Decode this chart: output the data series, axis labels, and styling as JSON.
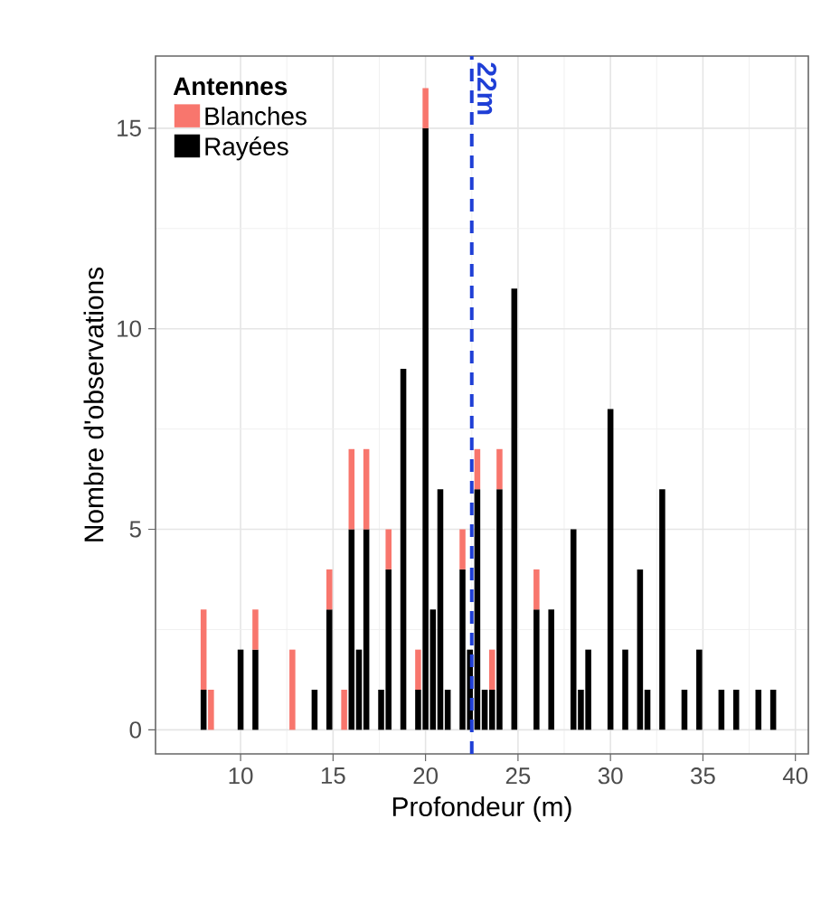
{
  "chart_data": {
    "type": "bar",
    "stacked": true,
    "xlabel": "Profondeur (m)",
    "ylabel": "Nombre d'observations",
    "legend_title": "Antennes",
    "legend": "top left",
    "grid": true,
    "x": [
      8.0,
      8.4,
      10.0,
      10.8,
      12.8,
      14.0,
      14.8,
      15.6,
      16.0,
      16.4,
      16.8,
      17.6,
      18.0,
      18.8,
      19.6,
      20.0,
      20.4,
      20.8,
      21.2,
      22.0,
      22.4,
      22.8,
      23.2,
      23.6,
      24.0,
      24.8,
      26.0,
      26.8,
      28.0,
      28.4,
      28.8,
      30.0,
      30.8,
      31.6,
      32.0,
      32.8,
      34.0,
      34.8,
      36.0,
      36.8,
      38.0,
      38.8
    ],
    "series": [
      {
        "name": "Rayées",
        "color": "#000000",
        "values": [
          1,
          null,
          2,
          2,
          null,
          1,
          3,
          null,
          5,
          2,
          5,
          1,
          4,
          9,
          1,
          15,
          3,
          6,
          1,
          4,
          2,
          6,
          1,
          1,
          6,
          11,
          3,
          3,
          5,
          1,
          2,
          8,
          2,
          4,
          1,
          6,
          1,
          2,
          1,
          1,
          1,
          1
        ]
      },
      {
        "name": "Blanches",
        "color": "#f8766d",
        "values": [
          2,
          1,
          null,
          1,
          2,
          null,
          1,
          1,
          2,
          null,
          2,
          null,
          1,
          null,
          1,
          1,
          null,
          null,
          null,
          1,
          null,
          1,
          null,
          1,
          1,
          null,
          1,
          null,
          null,
          null,
          null,
          null,
          null,
          null,
          null,
          null,
          null,
          null,
          null,
          null,
          null,
          null
        ]
      }
    ],
    "xlim": [
      5.4,
      40.7
    ],
    "ylim": [
      -0.6,
      16.8
    ],
    "xticks": [
      10,
      15,
      20,
      25,
      30,
      35,
      40
    ],
    "yticks": [
      0,
      5,
      10,
      15
    ],
    "ref_lines": [
      {
        "axis": "x",
        "value": 22.5,
        "label": "22m",
        "color": "#1f3fd6",
        "line_style": "dashed"
      }
    ]
  }
}
